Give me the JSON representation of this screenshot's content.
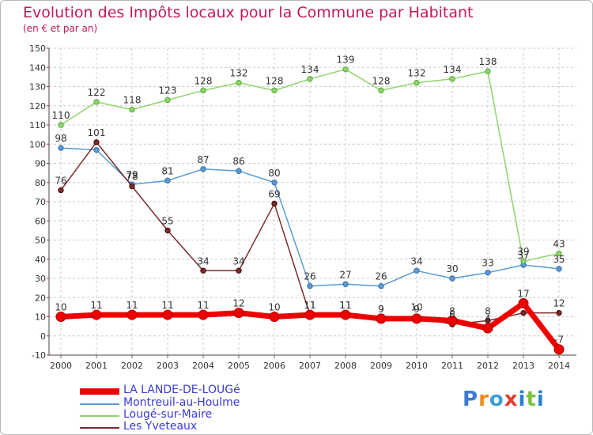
{
  "chart_data": {
    "type": "line",
    "title": "Evolution des Impôts locaux pour la Commune par Habitant",
    "subtitle": "(en € et par an)",
    "xlabel": "",
    "ylabel": "",
    "ylim": [
      -10,
      150
    ],
    "yticks": [
      -10,
      0,
      10,
      20,
      30,
      40,
      50,
      60,
      70,
      80,
      90,
      100,
      110,
      120,
      130,
      140,
      150
    ],
    "grid": true,
    "categories": [
      "2000",
      "2001",
      "2002",
      "2003",
      "2004",
      "2005",
      "2006",
      "2007",
      "2008",
      "2009",
      "2010",
      "2011",
      "2012",
      "2013",
      "2014"
    ],
    "series": [
      {
        "name": "Montreuil-au-Houlme",
        "color": "#5a9bd5",
        "values": [
          98,
          97,
          79,
          81,
          87,
          86,
          80,
          26,
          27,
          26,
          34,
          30,
          33,
          37,
          35
        ],
        "labels": [
          "98",
          "",
          "79",
          "81",
          "87",
          "86",
          "80",
          "26",
          "27",
          "26",
          "34",
          "30",
          "33",
          "37",
          "35"
        ]
      },
      {
        "name": "Lougé-sur-Maire",
        "color": "#8ed66b",
        "values": [
          110,
          122,
          118,
          123,
          128,
          132,
          128,
          134,
          139,
          128,
          132,
          134,
          138,
          39,
          43
        ],
        "labels": [
          "110",
          "122",
          "118",
          "123",
          "128",
          "132",
          "128",
          "134",
          "139",
          "128",
          "132",
          "134",
          "138",
          "39",
          "43"
        ]
      },
      {
        "name": "Les Yveteaux",
        "color": "#7b2a2a",
        "values": [
          76,
          101,
          78,
          55,
          34,
          34,
          69,
          11,
          11,
          9,
          10,
          6,
          8,
          12,
          12
        ],
        "labels": [
          "76",
          "101",
          "78",
          "55",
          "34",
          "34",
          "69",
          "11",
          "11",
          "9",
          "10",
          "6",
          "8",
          "",
          "12"
        ]
      },
      {
        "name": "LA LANDE-DE-LOUGé",
        "color": "#ee0000",
        "values": [
          10,
          11,
          11,
          11,
          11,
          12,
          10,
          11,
          11,
          9,
          9,
          8,
          4,
          17,
          -7
        ],
        "labels": [
          "10",
          "11",
          "11",
          "11",
          "11",
          "12",
          "10",
          "11",
          "11",
          "9",
          "9",
          "8",
          "4",
          "17",
          "-7"
        ]
      }
    ],
    "legend": {
      "position": "bottom-left",
      "order": [
        "LA LANDE-DE-LOUGé",
        "Montreuil-au-Houlme",
        "Lougé-sur-Maire",
        "Les Yveteaux"
      ]
    }
  },
  "brand": {
    "letters": [
      "P",
      "r",
      "o",
      "x",
      "i",
      "t",
      "i"
    ],
    "colors": [
      "#3a7bd5",
      "#ef8c1a",
      "#3aa0d8",
      "#e63b2e",
      "#2a7fd0",
      "#7cc13e",
      "#2a7fd0"
    ]
  }
}
